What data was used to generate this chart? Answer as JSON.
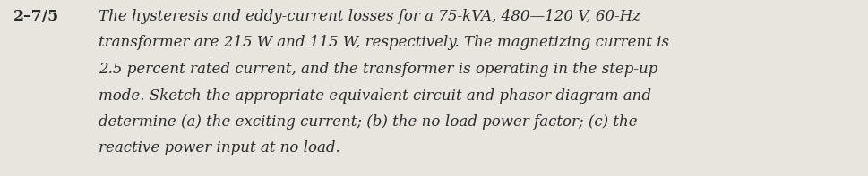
{
  "label": "2–7/5",
  "lines": [
    "The hysteresis and eddy-current losses for a 75-kVA, 480—120 V, 60-Hz",
    "transformer are 215 W and 115 W, respectively. The magnetizing current is",
    "2.5 percent rated current, and the transformer is operating in the step-up",
    "mode. Sketch the appropriate equivalent circuit and phasor diagram and",
    "determine (a) the exciting current; (b) the no-load power factor; (c) the",
    "reactive power input at no load."
  ],
  "background_color": "#e8e4de",
  "text_color": "#2a2a2a",
  "label_fontsize": 12.5,
  "body_fontsize": 12.0,
  "fig_width": 9.69,
  "fig_height": 1.97,
  "dpi": 100
}
